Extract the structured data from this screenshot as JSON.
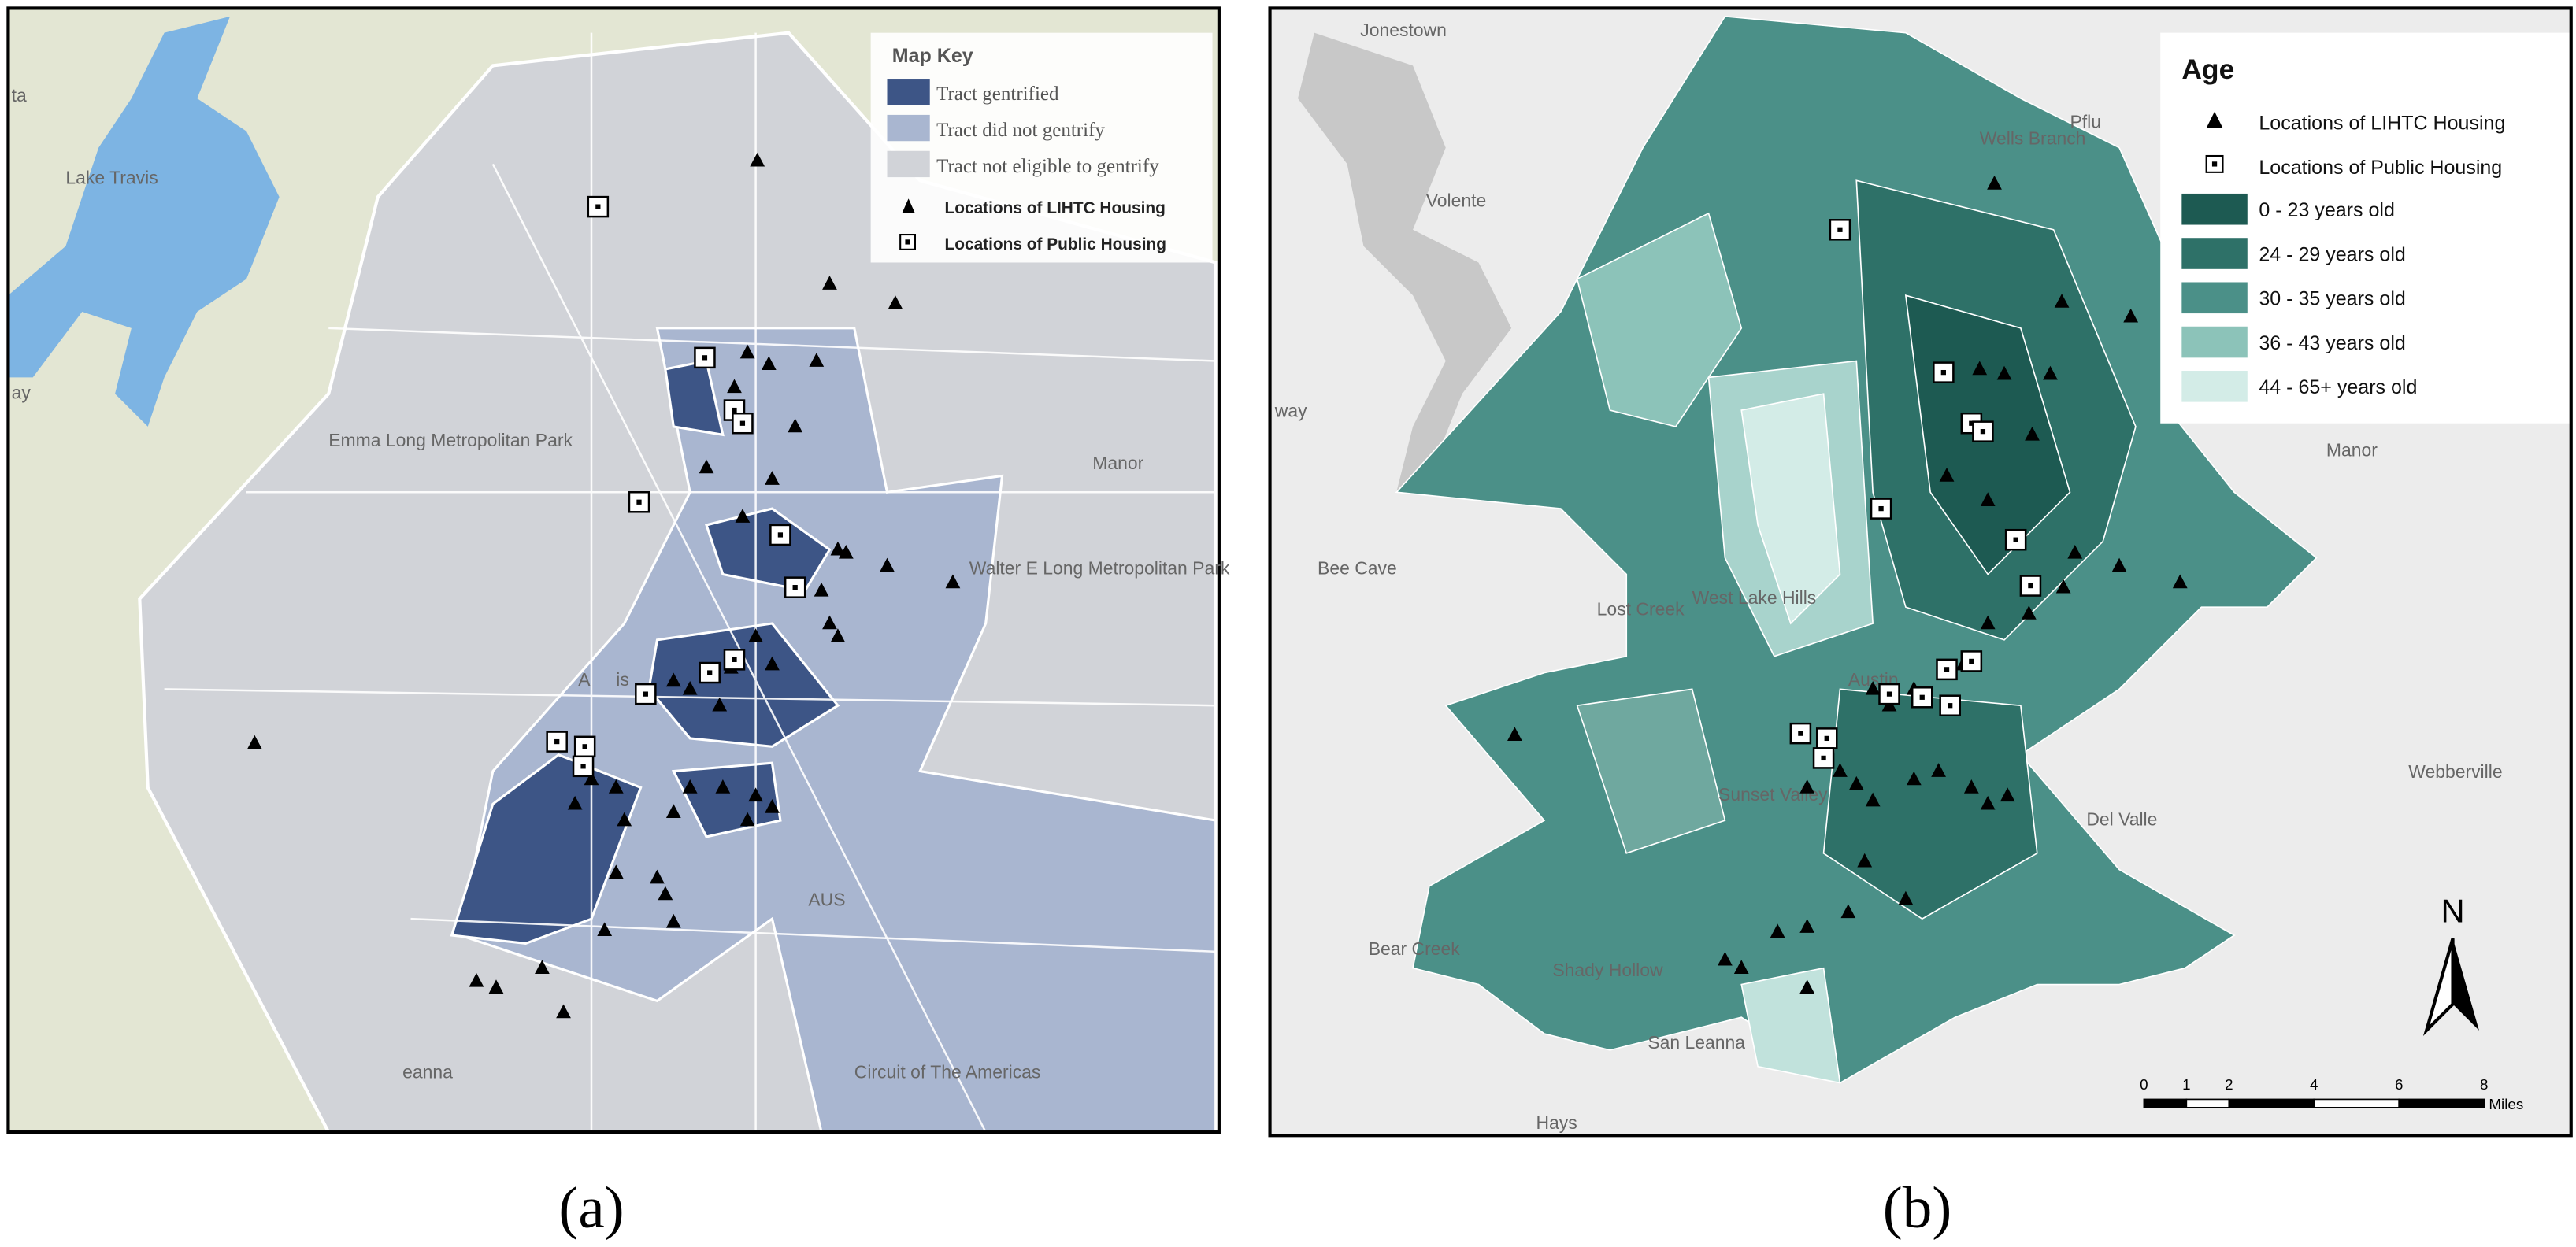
{
  "panel_a": {
    "legend": {
      "title": "Map Key",
      "items": [
        "Tract gentrified",
        "Tract did not gentrify",
        "Tract not eligible to gentrify",
        "Locations of LIHTC Housing",
        "Locations of Public Housing"
      ]
    },
    "place_labels": [
      "Lake Travis",
      "ay",
      "ta",
      "Emma Long Metropolitan Park",
      "Manor",
      "Walter E Long Metropolitan Park",
      "AUS",
      "Circuit of The Americas",
      "eanna",
      "A",
      "is"
    ],
    "caption": "(a)"
  },
  "panel_b": {
    "legend": {
      "title": "Age",
      "items": [
        "Locations of LIHTC Housing",
        "Locations of Public Housing",
        "0 - 23 years old",
        "24 - 29 years old",
        "30 - 35 years old",
        "36 - 43 years old",
        "44 - 65+ years old"
      ]
    },
    "place_labels": [
      "Jonestown",
      "Volente",
      "Wells Branch",
      "Pflu",
      "Bee Cave",
      "Lost Creek",
      "West Lake Hills",
      "Austin",
      "Manor",
      "Webberville",
      "Sunset Valley",
      "Del Valle",
      "Bear Creek",
      "Shady Hollow",
      "San Leanna",
      "Hays",
      "way"
    ],
    "north": "N",
    "scale_bar": {
      "ticks": [
        0,
        1,
        2,
        4,
        6,
        8
      ],
      "unit": "Miles"
    },
    "caption": "(b)"
  }
}
